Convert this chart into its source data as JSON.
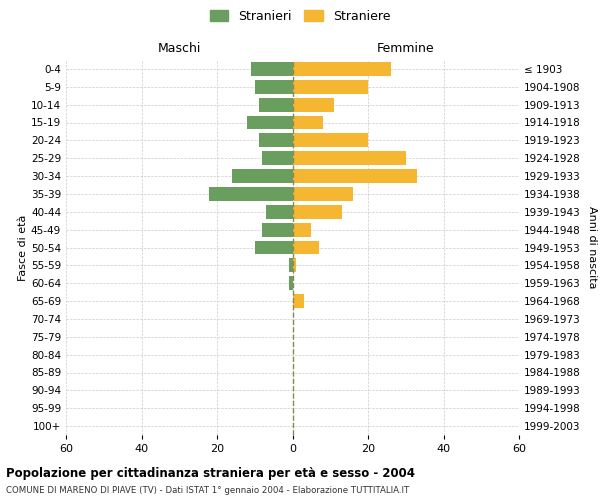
{
  "age_groups": [
    "0-4",
    "5-9",
    "10-14",
    "15-19",
    "20-24",
    "25-29",
    "30-34",
    "35-39",
    "40-44",
    "45-49",
    "50-54",
    "55-59",
    "60-64",
    "65-69",
    "70-74",
    "75-79",
    "80-84",
    "85-89",
    "90-94",
    "95-99",
    "100+"
  ],
  "birth_years": [
    "1999-2003",
    "1994-1998",
    "1989-1993",
    "1984-1988",
    "1979-1983",
    "1974-1978",
    "1969-1973",
    "1964-1968",
    "1959-1963",
    "1954-1958",
    "1949-1953",
    "1944-1948",
    "1939-1943",
    "1934-1938",
    "1929-1933",
    "1924-1928",
    "1919-1923",
    "1914-1918",
    "1909-1913",
    "1904-1908",
    "≤ 1903"
  ],
  "males": [
    11,
    10,
    9,
    12,
    9,
    8,
    16,
    22,
    7,
    8,
    10,
    1,
    1,
    0,
    0,
    0,
    0,
    0,
    0,
    0,
    0
  ],
  "females": [
    26,
    20,
    11,
    8,
    20,
    30,
    33,
    16,
    13,
    5,
    7,
    1,
    0,
    3,
    0,
    0,
    0,
    0,
    0,
    0,
    0
  ],
  "male_color": "#6a9e5f",
  "female_color": "#f5b731",
  "bg_color": "#ffffff",
  "grid_color": "#cccccc",
  "center_line_color": "#888855",
  "xlim": 60,
  "title": "Popolazione per cittadinanza straniera per età e sesso - 2004",
  "subtitle": "COMUNE DI MARENO DI PIAVE (TV) - Dati ISTAT 1° gennaio 2004 - Elaborazione TUTTITALIA.IT",
  "legend_stranieri": "Stranieri",
  "legend_straniere": "Straniere",
  "xlabel_left": "Maschi",
  "xlabel_right": "Femmine",
  "ylabel_left": "Fasce di età",
  "ylabel_right": "Anni di nascita"
}
